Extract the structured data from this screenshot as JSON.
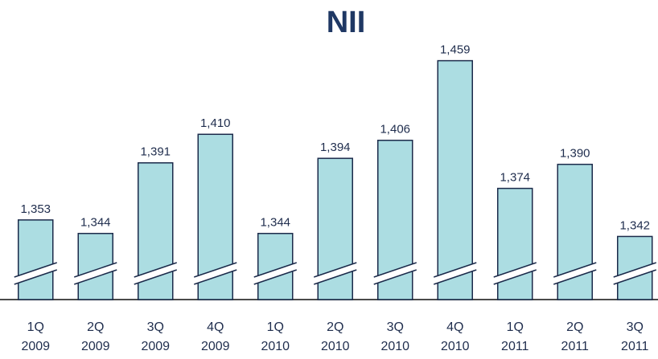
{
  "chart_data": {
    "type": "bar",
    "title": "NII",
    "categories": [
      "1Q 2009",
      "2Q 2009",
      "3Q 2009",
      "4Q 2009",
      "1Q 2010",
      "2Q 2010",
      "3Q 2010",
      "4Q 2010",
      "1Q 2011",
      "2Q 2011",
      "3Q 2011"
    ],
    "values": [
      1353,
      1344,
      1391,
      1410,
      1344,
      1394,
      1406,
      1459,
      1374,
      1390,
      1342
    ],
    "value_labels": [
      "1,353",
      "1,344",
      "1,391",
      "1,410",
      "1,344",
      "1,394",
      "1,406",
      "1,459",
      "1,374",
      "1,390",
      "1,342"
    ],
    "color": "#acdde2",
    "ylim": [
      1300,
      1470
    ]
  }
}
